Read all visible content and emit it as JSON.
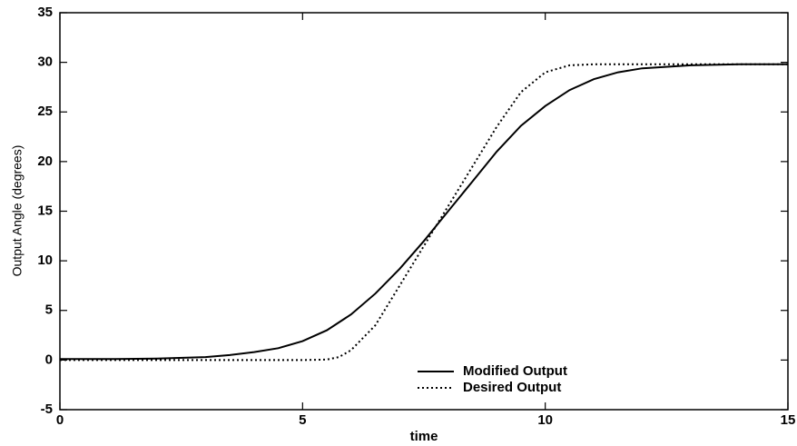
{
  "chart_data": {
    "type": "line",
    "xlabel": "time",
    "ylabel": "Output Angle (degrees)",
    "xlim": [
      0,
      15
    ],
    "xticks": [
      0,
      5,
      10,
      15
    ],
    "ylim": [
      -5,
      35
    ],
    "yticks": [
      -5,
      0,
      5,
      10,
      15,
      20,
      25,
      30,
      35
    ],
    "grid": false,
    "legend": "lower center",
    "series": [
      {
        "name": "Modified Output",
        "color": "#000000",
        "style": "solid",
        "x": [
          0,
          1,
          2,
          3,
          3.5,
          4,
          4.5,
          5,
          5.5,
          6,
          6.5,
          7,
          7.5,
          8,
          8.5,
          9,
          9.5,
          10,
          10.5,
          11,
          11.5,
          12,
          13,
          14,
          15
        ],
        "values": [
          0.1,
          0.1,
          0.15,
          0.3,
          0.5,
          0.8,
          1.2,
          1.9,
          3,
          4.6,
          6.7,
          9.2,
          12,
          15,
          18,
          21,
          23.6,
          25.6,
          27.2,
          28.3,
          29,
          29.4,
          29.7,
          29.8,
          29.8
        ]
      },
      {
        "name": "Desired Output",
        "color": "#000000",
        "style": "dotted",
        "x": [
          0,
          1,
          2,
          3,
          4,
          5,
          5.5,
          5.75,
          6,
          6.5,
          7,
          7.5,
          8,
          8.5,
          9,
          9.5,
          10,
          10.5,
          11,
          12,
          13,
          14,
          15
        ],
        "values": [
          0,
          0,
          0,
          0,
          0,
          0,
          0.05,
          0.3,
          1,
          3.5,
          7.5,
          11.5,
          15.5,
          19.5,
          23.5,
          27,
          29,
          29.7,
          29.8,
          29.8,
          29.8,
          29.8,
          29.8
        ]
      }
    ]
  }
}
